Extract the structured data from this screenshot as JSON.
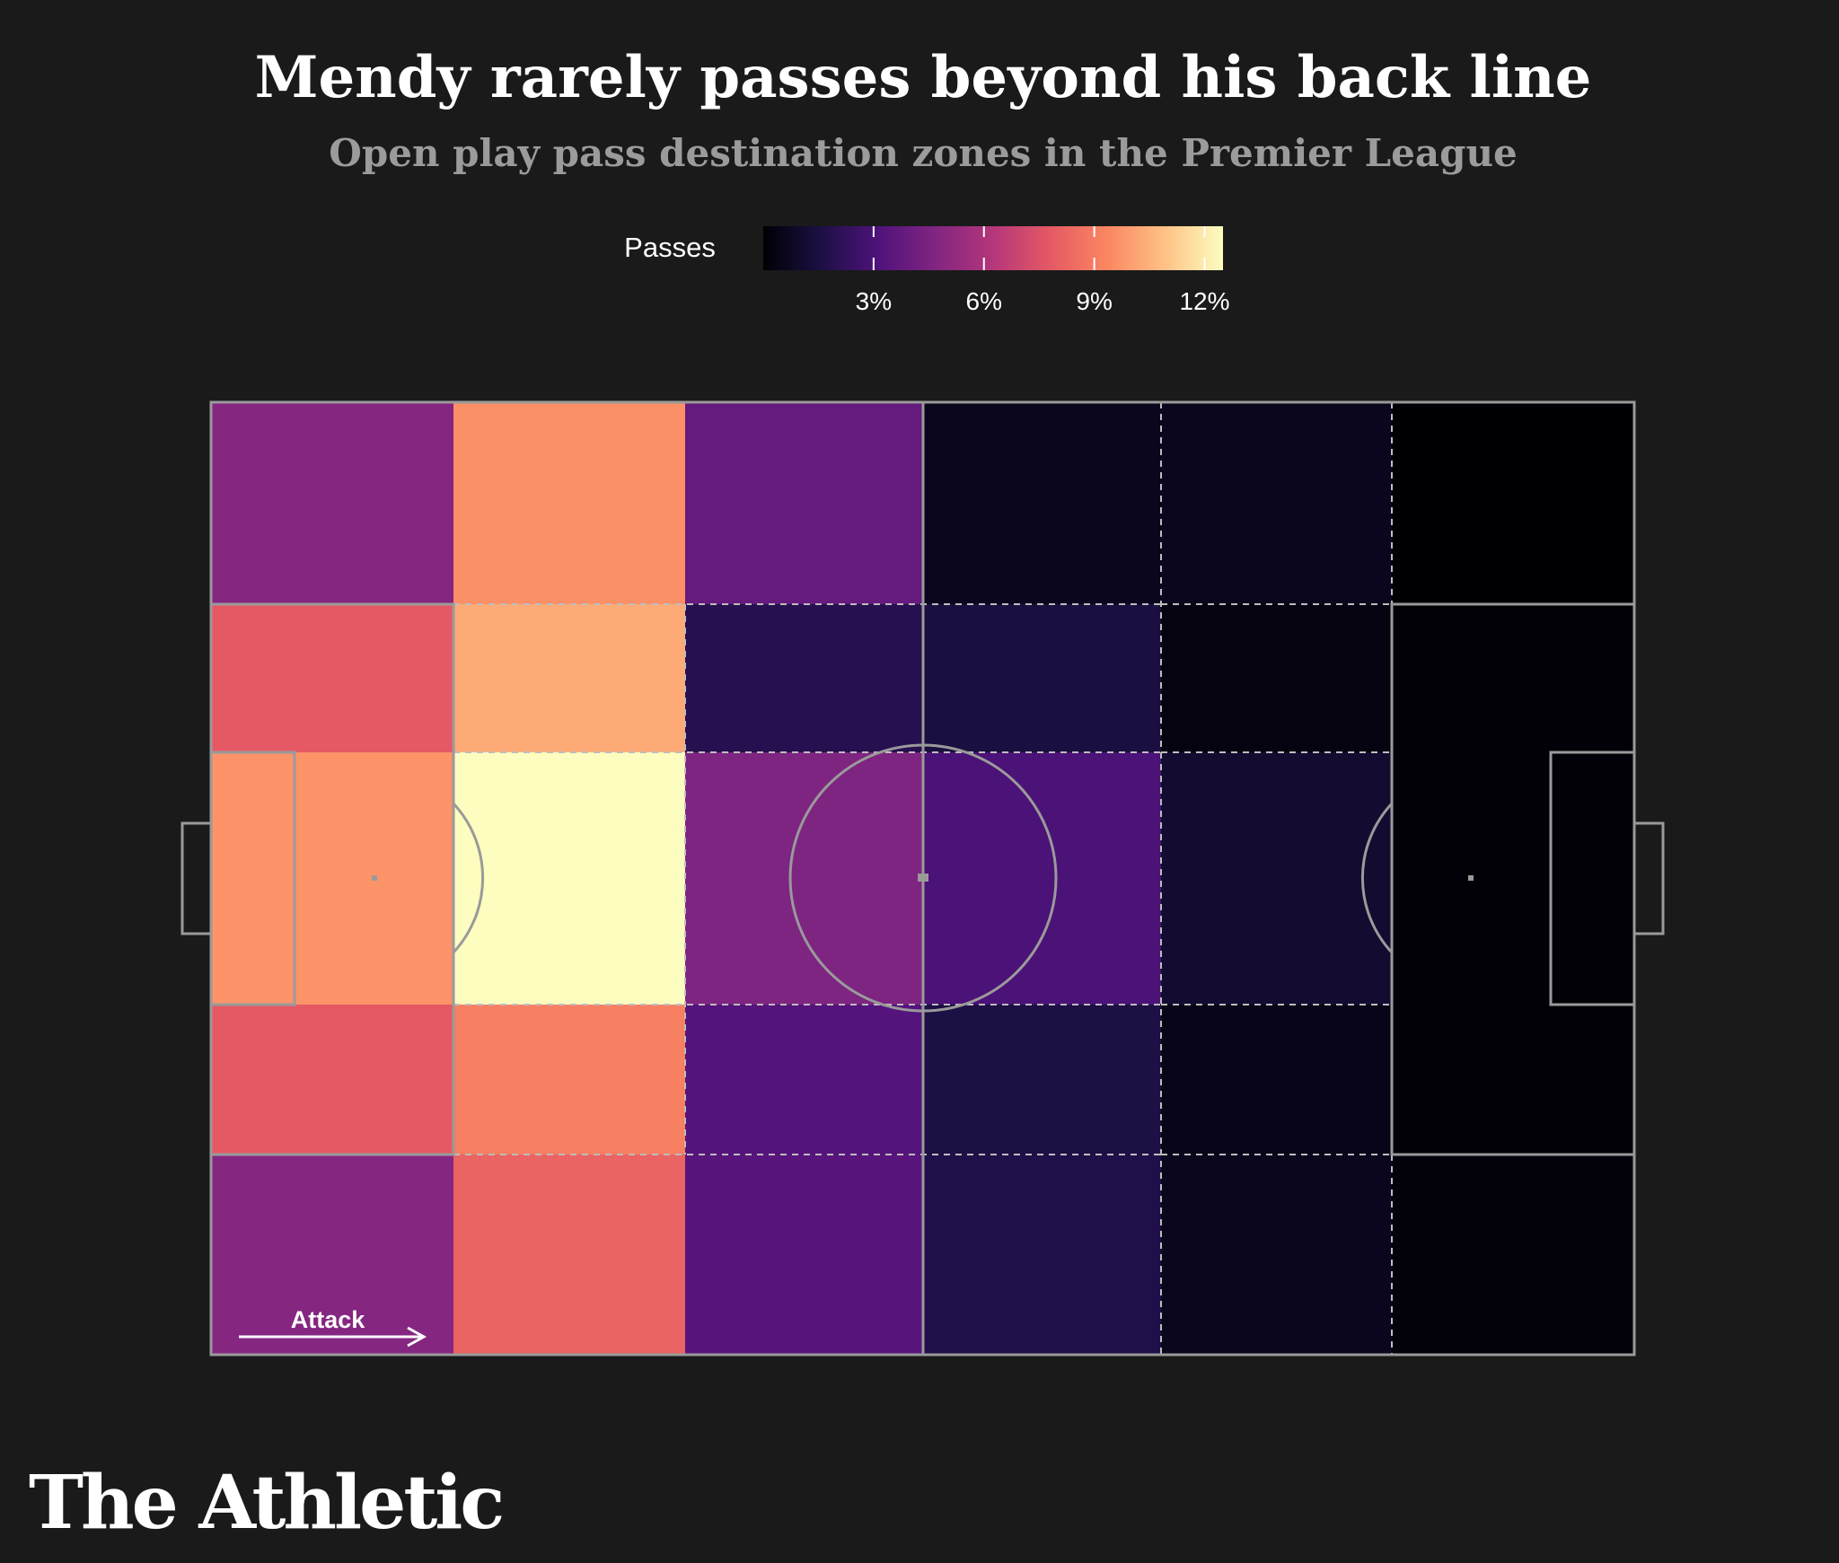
{
  "chart_data": {
    "type": "heatmap",
    "title": "Mendy rarely passes beyond his back line",
    "subtitle": "Open play pass destination zones in the Premier League",
    "legend": {
      "title": "Passes",
      "ticks": [
        "3%",
        "6%",
        "9%",
        "12%"
      ],
      "tick_values": [
        3,
        6,
        9,
        12
      ],
      "range": [
        0,
        12.5
      ]
    },
    "units": "% of passes",
    "zones": [
      {
        "id": "c1-left-wing",
        "value": 4.8
      },
      {
        "id": "c1-left-halfspace",
        "value": 7.8
      },
      {
        "id": "c1-box",
        "value": 9.7
      },
      {
        "id": "c1-right-halfspace",
        "value": 7.8
      },
      {
        "id": "c1-right-wing",
        "value": 4.8
      },
      {
        "id": "c2-left-wing",
        "value": 9.6
      },
      {
        "id": "c2-left-halfspace",
        "value": 10.3
      },
      {
        "id": "c2-center",
        "value": 12.5
      },
      {
        "id": "c2-right-halfspace",
        "value": 9.1
      },
      {
        "id": "c2-right-wing",
        "value": 8.2
      },
      {
        "id": "c3-left-wing",
        "value": 3.8
      },
      {
        "id": "c3-left-halfspace",
        "value": 1.9
      },
      {
        "id": "c3-center",
        "value": 4.6
      },
      {
        "id": "c3-right-halfspace",
        "value": 3.3
      },
      {
        "id": "c3-right-wing",
        "value": 3.4
      },
      {
        "id": "c4-left-wing",
        "value": 0.6
      },
      {
        "id": "c4-left-halfspace",
        "value": 1.5
      },
      {
        "id": "c4-center",
        "value": 3.0
      },
      {
        "id": "c4-right-halfspace",
        "value": 1.6
      },
      {
        "id": "c4-right-wing",
        "value": 1.7
      },
      {
        "id": "c5-left-wing",
        "value": 0.6
      },
      {
        "id": "c5-left-halfspace",
        "value": 0.3
      },
      {
        "id": "c5-center",
        "value": 1.1
      },
      {
        "id": "c5-right-halfspace",
        "value": 0.5
      },
      {
        "id": "c5-right-wing",
        "value": 0.6
      },
      {
        "id": "c6-left-wing",
        "value": 0.0
      },
      {
        "id": "c6-left-halfspace",
        "value": 0.1
      },
      {
        "id": "c6-box",
        "value": 0.1
      },
      {
        "id": "c6-right-halfspace",
        "value": 0.1
      },
      {
        "id": "c6-right-wing",
        "value": 0.15
      }
    ],
    "annotation": "Attack"
  },
  "brand": "The Athletic",
  "colors": {
    "background": "#1a1a1a",
    "pitch_lines": "#9a9a9a",
    "colormap": [
      "#000004",
      "#1c1044",
      "#4f127b",
      "#812581",
      "#b5367a",
      "#e55964",
      "#fb8761",
      "#fec287",
      "#fcfdbf"
    ]
  }
}
